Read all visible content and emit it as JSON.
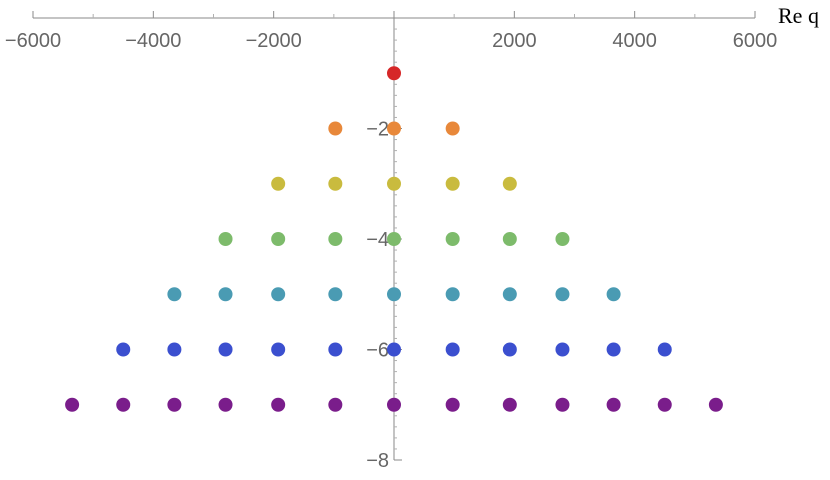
{
  "chart_data": {
    "type": "scatter",
    "title": "",
    "xlabel": "Re q",
    "ylabel": "",
    "xlim": [
      -6000,
      6000
    ],
    "ylim": [
      -8,
      0
    ],
    "grid": false,
    "x_ticks": [
      -6000,
      -4000,
      -2000,
      2000,
      4000,
      6000
    ],
    "x_tick_labels": [
      "−6000",
      "−4000",
      "−2000",
      "2000",
      "4000",
      "6000"
    ],
    "y_ticks": [
      -2,
      -4,
      -6,
      -8
    ],
    "y_tick_labels": [
      "−2",
      "−4",
      "−6",
      "−8"
    ],
    "series": [
      {
        "color": "#d62728",
        "y": -1,
        "x": [
          0
        ]
      },
      {
        "color": "#e8883a",
        "y": -2,
        "x": [
          -975,
          0,
          975
        ]
      },
      {
        "color": "#c9bb3e",
        "y": -3,
        "x": [
          -1925,
          -975,
          0,
          975,
          1925
        ]
      },
      {
        "color": "#7dbb6b",
        "y": -4,
        "x": [
          -2800,
          -1925,
          -975,
          0,
          975,
          1925,
          2800
        ]
      },
      {
        "color": "#4a9bb3",
        "y": -5,
        "x": [
          -3650,
          -2800,
          -1925,
          -975,
          0,
          975,
          1925,
          2800,
          3650
        ]
      },
      {
        "color": "#3b4fcf",
        "y": -6,
        "x": [
          -4500,
          -3650,
          -2800,
          -1925,
          -975,
          0,
          975,
          1925,
          2800,
          3650,
          4500
        ]
      },
      {
        "color": "#7a1d8b",
        "y": -7,
        "x": [
          -5350,
          -4500,
          -3650,
          -2800,
          -1925,
          -975,
          0,
          975,
          1925,
          2800,
          3650,
          4500,
          5350
        ]
      }
    ]
  }
}
